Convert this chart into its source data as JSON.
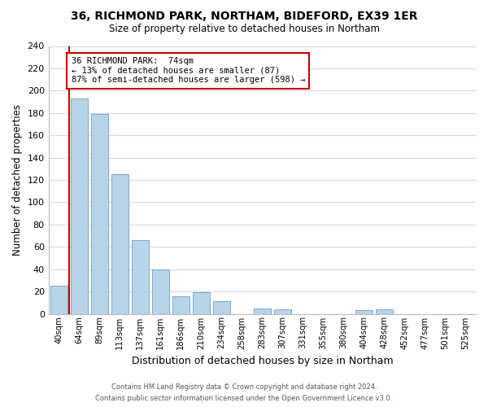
{
  "title1": "36, RICHMOND PARK, NORTHAM, BIDEFORD, EX39 1ER",
  "title2": "Size of property relative to detached houses in Northam",
  "xlabel": "Distribution of detached houses by size in Northam",
  "ylabel": "Number of detached properties",
  "bar_labels": [
    "40sqm",
    "64sqm",
    "89sqm",
    "113sqm",
    "137sqm",
    "161sqm",
    "186sqm",
    "210sqm",
    "234sqm",
    "258sqm",
    "283sqm",
    "307sqm",
    "331sqm",
    "355sqm",
    "380sqm",
    "404sqm",
    "428sqm",
    "452sqm",
    "477sqm",
    "501sqm",
    "525sqm"
  ],
  "bar_values": [
    25,
    193,
    179,
    125,
    66,
    40,
    16,
    19,
    11,
    0,
    5,
    4,
    0,
    0,
    0,
    3,
    4,
    0,
    0,
    0,
    0
  ],
  "bar_color": "#b8d4e8",
  "bar_edge_color": "#7aaac8",
  "vline_x": 0.5,
  "vline_color": "#cc0000",
  "ylim": [
    0,
    240
  ],
  "yticks": [
    0,
    20,
    40,
    60,
    80,
    100,
    120,
    140,
    160,
    180,
    200,
    220,
    240
  ],
  "annotation_title": "36 RICHMOND PARK:  74sqm",
  "annotation_line1": "← 13% of detached houses are smaller (87)",
  "annotation_line2": "87% of semi-detached houses are larger (598) →",
  "annotation_box_color": "#ffffff",
  "annotation_box_edge": "#cc0000",
  "footer1": "Contains HM Land Registry data © Crown copyright and database right 2024.",
  "footer2": "Contains public sector information licensed under the Open Government Licence v3.0.",
  "background_color": "#ffffff",
  "grid_color": "#d0d8e8"
}
